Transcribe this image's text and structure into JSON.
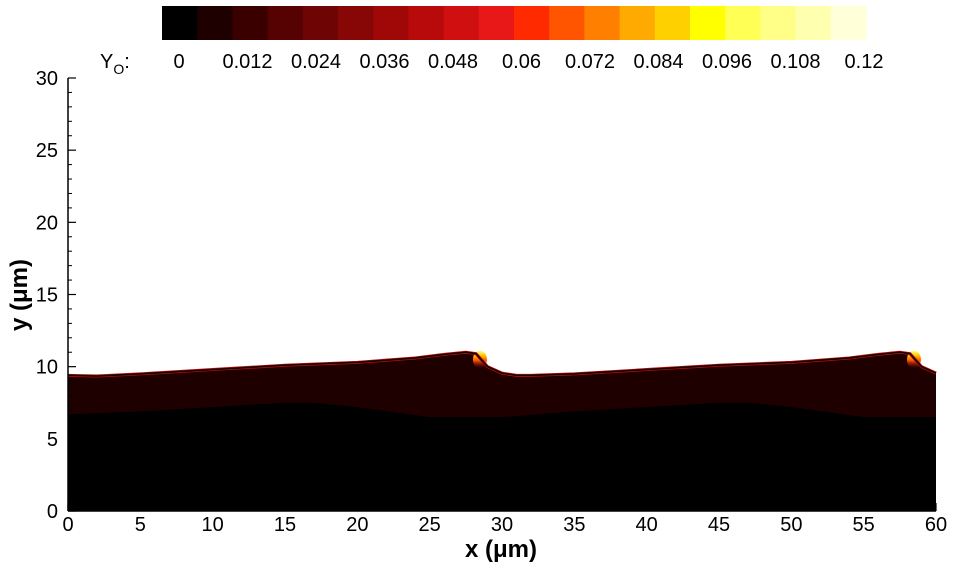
{
  "chart_data": {
    "type": "heatmap",
    "xlabel": "x (μm)",
    "ylabel": "y (μm)",
    "xlim": [
      0,
      60
    ],
    "ylim": [
      0,
      30
    ],
    "x_ticks": [
      "0",
      "5",
      "10",
      "15",
      "20",
      "25",
      "30",
      "35",
      "40",
      "45",
      "50",
      "55",
      "60"
    ],
    "y_ticks": [
      "0",
      "5",
      "10",
      "15",
      "20",
      "25",
      "30"
    ],
    "colorbar": {
      "variable_base": "Y",
      "variable_sub": "O",
      "suffix": ":",
      "min": 0,
      "max": 0.12,
      "tick_labels": [
        "0",
        "0.012",
        "0.024",
        "0.036",
        "0.048",
        "0.06",
        "0.072",
        "0.084",
        "0.096",
        "0.108",
        "0.12"
      ],
      "colors": [
        "#000000",
        "#1e0000",
        "#3a0000",
        "#560202",
        "#6e0404",
        "#870606",
        "#a00808",
        "#b80a0a",
        "#d01010",
        "#e81818",
        "#ff2a00",
        "#ff5500",
        "#ff8000",
        "#ffaa00",
        "#ffd000",
        "#ffff00",
        "#ffff55",
        "#ffff88",
        "#ffffb0",
        "#ffffd8"
      ]
    },
    "interface_profile": {
      "x": [
        0,
        2,
        5,
        10,
        15,
        20,
        24,
        26,
        27.5,
        28.2,
        29,
        30,
        31,
        32,
        35,
        40,
        45,
        50,
        54,
        56,
        57.5,
        58.2,
        59,
        60
      ],
      "y": [
        9.4,
        9.35,
        9.5,
        9.8,
        10.1,
        10.3,
        10.6,
        10.85,
        11.0,
        10.9,
        10.0,
        9.55,
        9.4,
        9.4,
        9.5,
        9.8,
        10.1,
        10.3,
        10.6,
        10.85,
        11.0,
        10.9,
        10.0,
        9.55
      ]
    },
    "dark_core_profile": {
      "x": [
        0,
        5,
        10,
        15,
        17,
        20,
        25,
        30,
        35,
        40,
        45,
        47,
        50,
        55,
        60
      ],
      "y": [
        6.7,
        6.9,
        7.2,
        7.5,
        7.5,
        7.2,
        6.5,
        6.5,
        6.9,
        7.2,
        7.5,
        7.5,
        7.2,
        6.5,
        6.5
      ]
    },
    "peak_locations_x": [
      28.2,
      58.2
    ]
  }
}
